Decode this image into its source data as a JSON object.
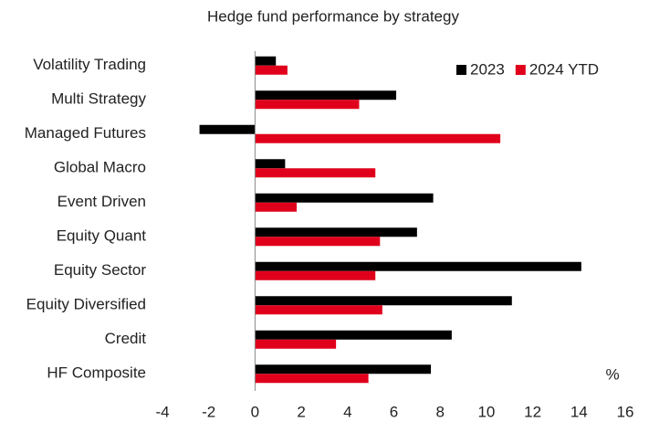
{
  "chart_data": {
    "type": "hbar",
    "title": "Hedge fund performance by strategy",
    "unit_label": "%",
    "categories": [
      "Volatility Trading",
      "Multi Strategy",
      "Managed Futures",
      "Global Macro",
      "Event Driven",
      "Equity Quant",
      "Equity Sector",
      "Equity Diversified",
      "Credit",
      "HF Composite"
    ],
    "series": [
      {
        "name": "2023",
        "color": "#000000",
        "values": [
          0.9,
          6.1,
          -2.4,
          1.3,
          7.7,
          7.0,
          14.1,
          11.1,
          8.5,
          7.6
        ]
      },
      {
        "name": "2024 YTD",
        "color": "#e0001b",
        "values": [
          1.4,
          4.5,
          10.6,
          5.2,
          1.8,
          5.4,
          5.2,
          5.5,
          3.5,
          4.9
        ]
      }
    ],
    "xlim": [
      -4,
      16
    ],
    "xticks": [
      -4,
      -2,
      0,
      2,
      4,
      6,
      8,
      10,
      12,
      14,
      16
    ],
    "legend": "top-right"
  }
}
